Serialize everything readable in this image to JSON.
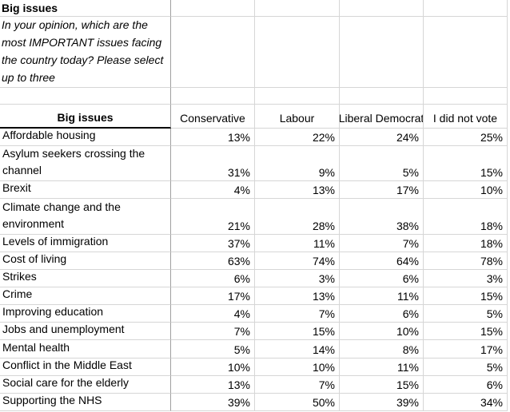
{
  "title_block": {
    "title": "Big issues",
    "question": "In your opinion, which are the most IMPORTANT issues facing the country today? Please select up to three"
  },
  "table": {
    "header": {
      "label": "Big issues",
      "columns": [
        "Conservative",
        "Labour",
        "Liberal Democrat",
        "I did not vote"
      ]
    },
    "rows": [
      {
        "issue": "Affordable housing",
        "values": [
          "13%",
          "22%",
          "24%",
          "25%"
        ]
      },
      {
        "issue": "Asylum seekers crossing the channel",
        "values": [
          "31%",
          "9%",
          "5%",
          "15%"
        ]
      },
      {
        "issue": "Brexit",
        "values": [
          "4%",
          "13%",
          "17%",
          "10%"
        ]
      },
      {
        "issue": "Climate change and the environment",
        "values": [
          "21%",
          "28%",
          "38%",
          "18%"
        ]
      },
      {
        "issue": "Levels of immigration",
        "values": [
          "37%",
          "11%",
          "7%",
          "18%"
        ]
      },
      {
        "issue": "Cost of living",
        "values": [
          "63%",
          "74%",
          "64%",
          "78%"
        ]
      },
      {
        "issue": "Strikes",
        "values": [
          "6%",
          "3%",
          "6%",
          "3%"
        ]
      },
      {
        "issue": "Crime",
        "values": [
          "17%",
          "13%",
          "11%",
          "15%"
        ]
      },
      {
        "issue": "Improving education",
        "values": [
          "4%",
          "7%",
          "6%",
          "5%"
        ]
      },
      {
        "issue": "Jobs and unemployment",
        "values": [
          "7%",
          "15%",
          "10%",
          "15%"
        ]
      },
      {
        "issue": "Mental health",
        "values": [
          "5%",
          "14%",
          "8%",
          "17%"
        ]
      },
      {
        "issue": "Conflict in the Middle East",
        "values": [
          "10%",
          "10%",
          "11%",
          "5%"
        ]
      },
      {
        "issue": "Social care for the elderly",
        "values": [
          "13%",
          "7%",
          "15%",
          "6%"
        ]
      },
      {
        "issue": "Supporting the NHS",
        "values": [
          "39%",
          "50%",
          "39%",
          "34%"
        ]
      }
    ]
  },
  "colors": {
    "background": "#ffffff",
    "text": "#000000",
    "gridline": "#d6d6d6",
    "column_divider": "#9f9f9f",
    "header_underline": "#000000"
  }
}
